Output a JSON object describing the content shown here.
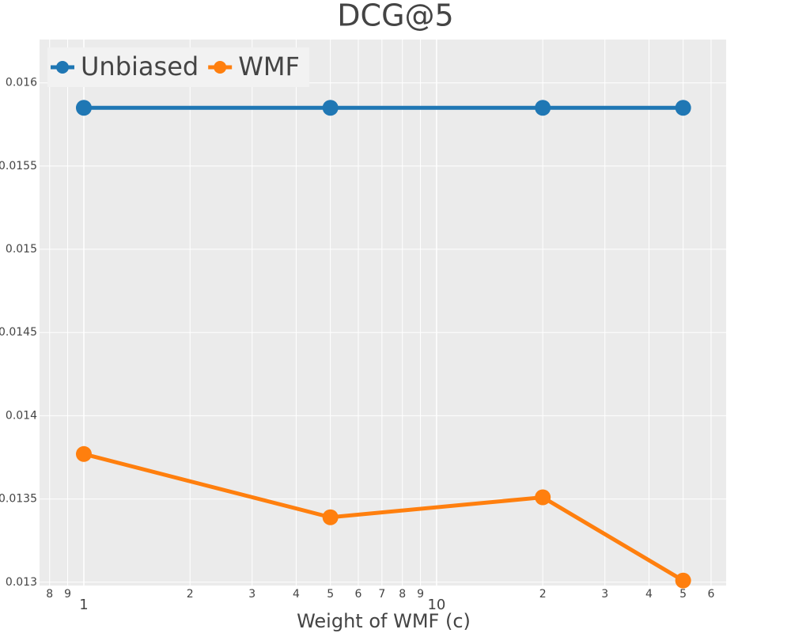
{
  "chart_data": {
    "type": "line",
    "title": "DCG@5",
    "x_label": "Weight of WMF (c)",
    "x": [
      1,
      5,
      20,
      50
    ],
    "series": [
      {
        "name": "Unbiased",
        "color": "#1f77b4",
        "values": [
          0.01585,
          0.01585,
          0.01585,
          0.01585
        ]
      },
      {
        "name": "WMF",
        "color": "#ff7f0e",
        "values": [
          0.01377,
          0.01339,
          0.01351,
          0.01301
        ]
      }
    ],
    "xscale": "log",
    "xlim": [
      0.749,
      66.2
    ],
    "xticks": [
      {
        "value": 0.8,
        "label": "8"
      },
      {
        "value": 0.9,
        "label": "9"
      },
      1,
      2,
      3,
      4,
      5,
      6,
      7,
      8,
      9,
      10,
      {
        "value": 20,
        "label": "2"
      },
      {
        "value": 30,
        "label": "3"
      },
      {
        "value": 40,
        "label": "4"
      },
      {
        "value": 50,
        "label": "5"
      },
      {
        "value": 60,
        "label": "6"
      }
    ],
    "ylim": [
      0.01298,
      0.01626
    ],
    "yticks": [
      0.013,
      0.0135,
      0.014,
      0.0145,
      0.015,
      0.0155,
      0.016
    ],
    "grid": true,
    "legend": "top-left"
  }
}
